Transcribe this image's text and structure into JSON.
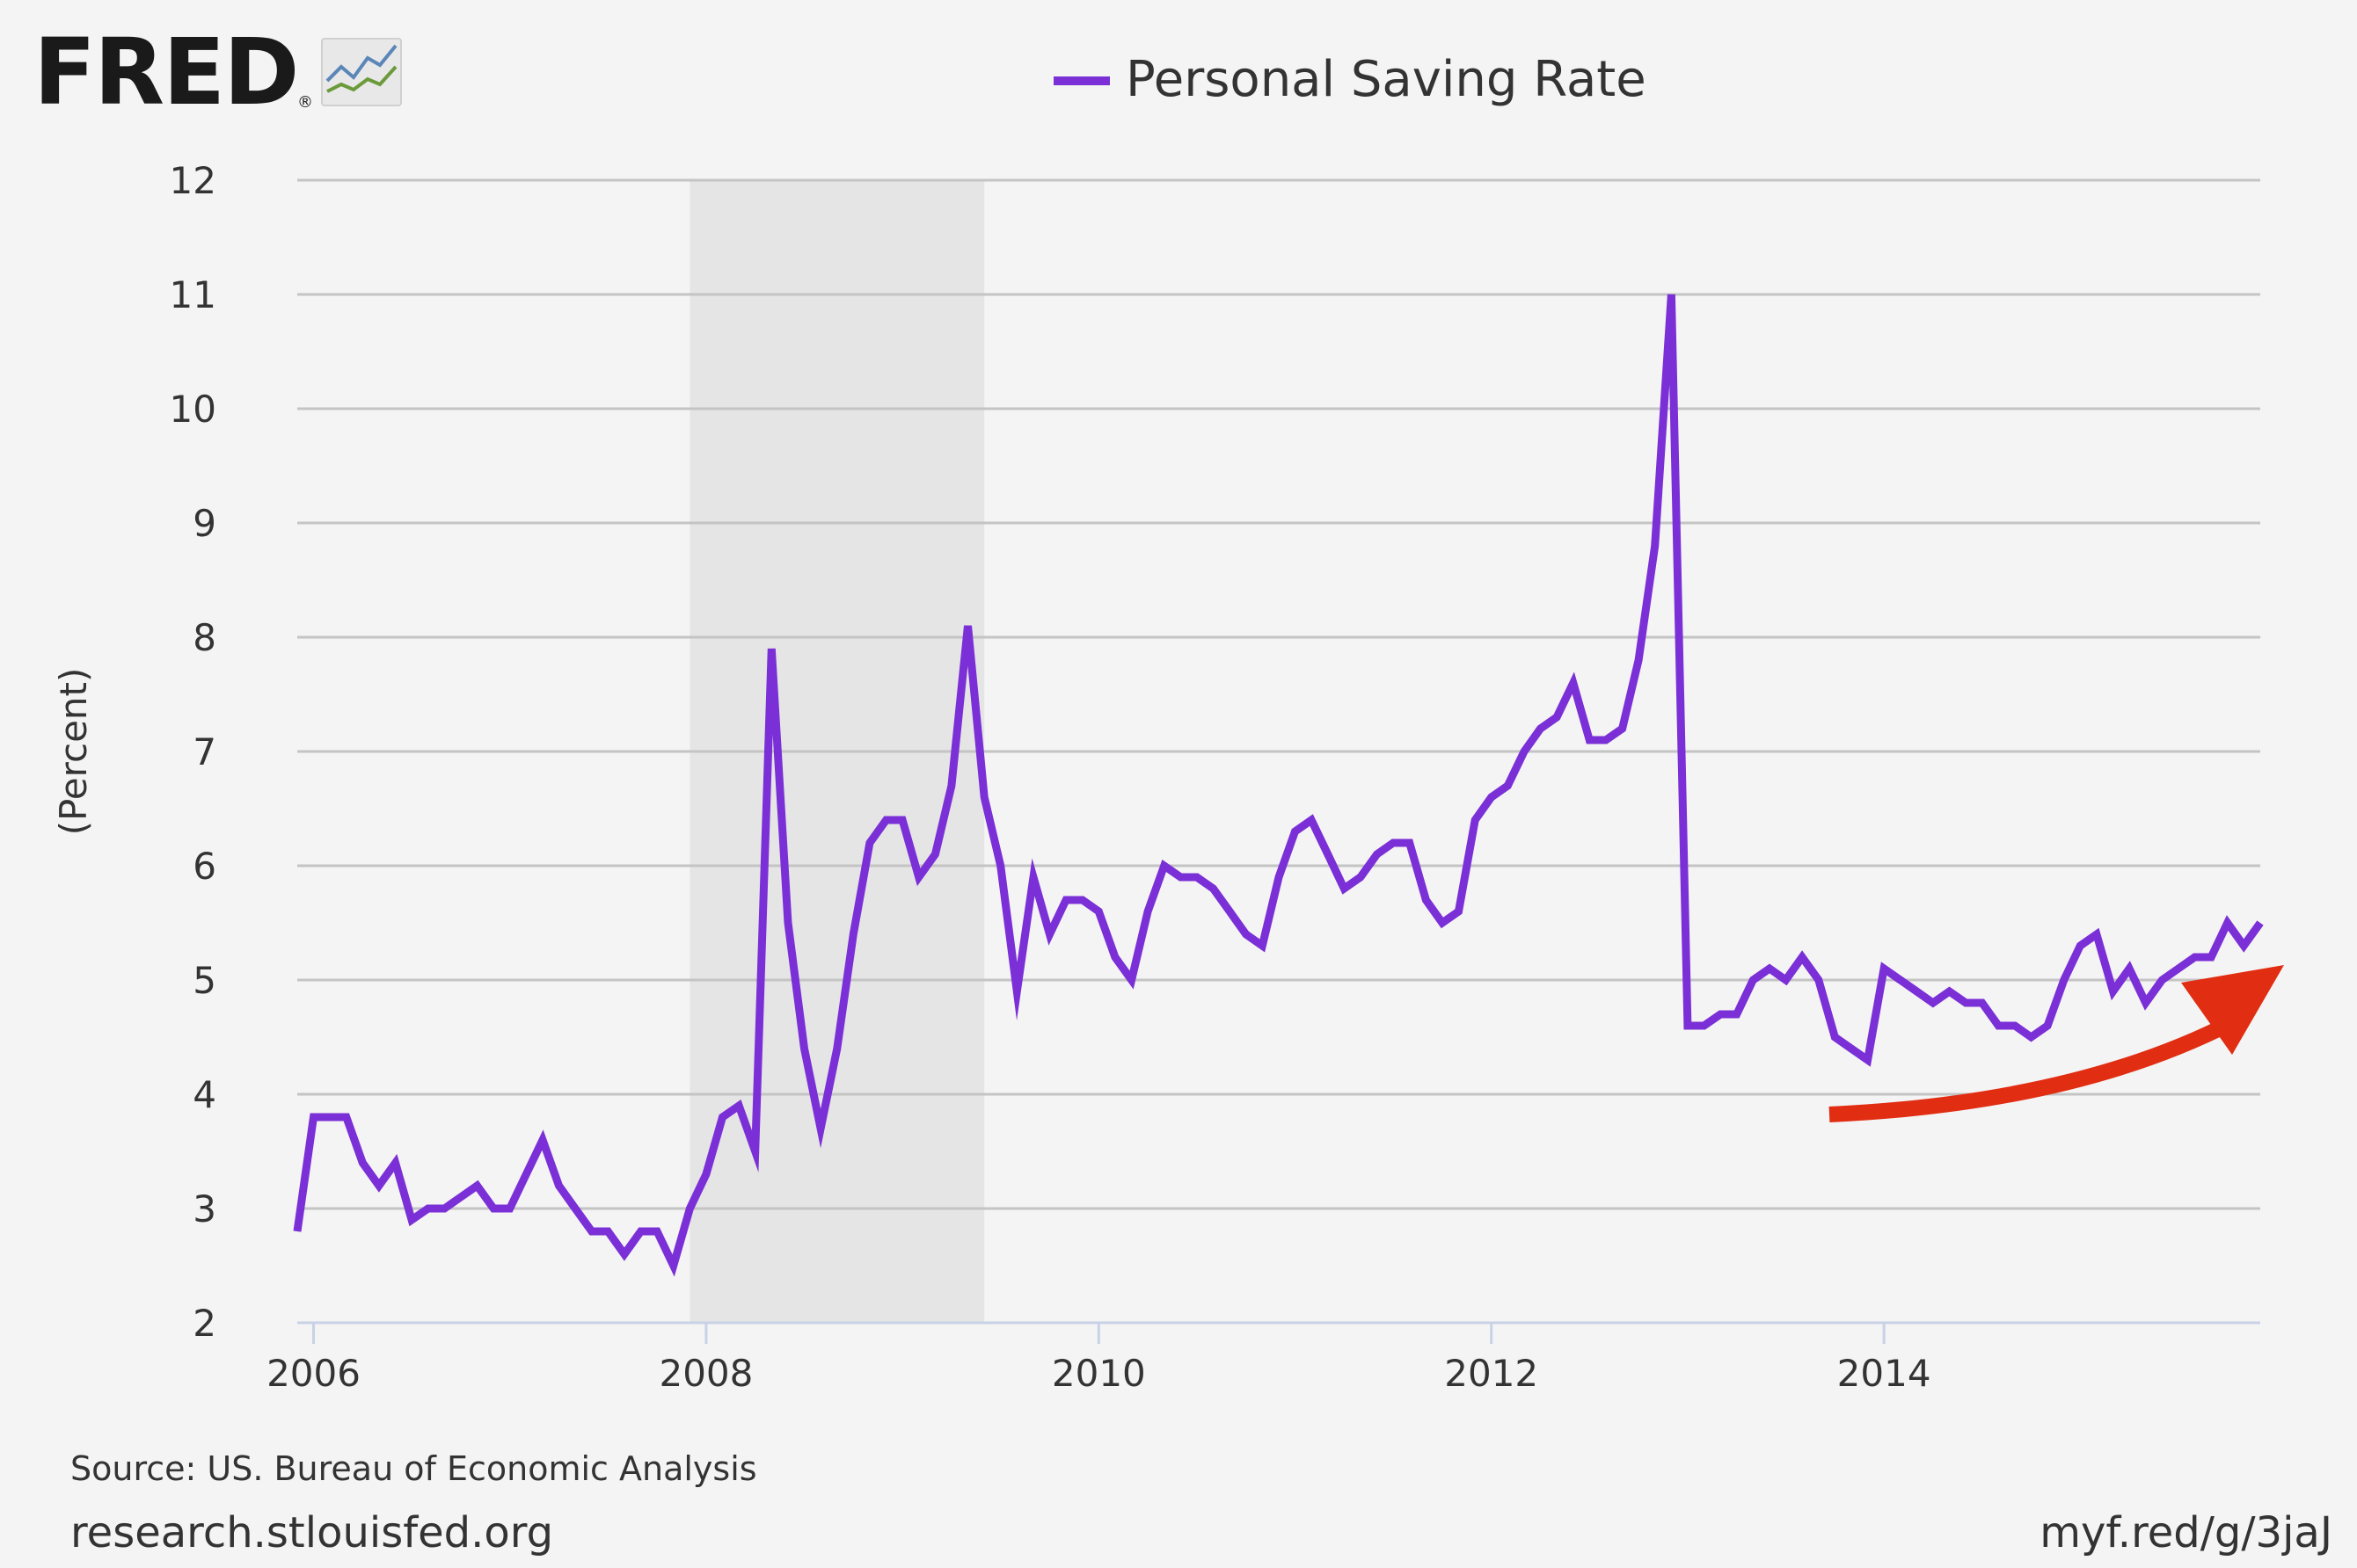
{
  "logo": {
    "text": "FRED",
    "registered": "®"
  },
  "chart_data": {
    "type": "line",
    "title": "",
    "ylabel": "(Percent)",
    "xlabel": "",
    "ylim": [
      2,
      12
    ],
    "y_ticks": [
      2,
      3,
      4,
      5,
      6,
      7,
      8,
      9,
      10,
      11,
      12
    ],
    "x_ticks": [
      2006,
      2008,
      2010,
      2012,
      2014
    ],
    "x_range": [
      2005.917,
      2015.917
    ],
    "grid": true,
    "legend_position": "top-center",
    "recession_shading": [
      {
        "start": 2007.917,
        "end": 2009.417
      }
    ],
    "series": [
      {
        "name": "Personal Saving Rate",
        "color": "#7b2fd6",
        "x": [
          2005.917,
          2006.0,
          2006.083,
          2006.167,
          2006.25,
          2006.333,
          2006.417,
          2006.5,
          2006.583,
          2006.667,
          2006.75,
          2006.833,
          2006.917,
          2007.0,
          2007.083,
          2007.167,
          2007.25,
          2007.333,
          2007.417,
          2007.5,
          2007.583,
          2007.667,
          2007.75,
          2007.833,
          2007.917,
          2008.0,
          2008.083,
          2008.167,
          2008.25,
          2008.333,
          2008.417,
          2008.5,
          2008.583,
          2008.667,
          2008.75,
          2008.833,
          2008.917,
          2009.0,
          2009.083,
          2009.167,
          2009.25,
          2009.333,
          2009.417,
          2009.5,
          2009.583,
          2009.667,
          2009.75,
          2009.833,
          2009.917,
          2010.0,
          2010.083,
          2010.167,
          2010.25,
          2010.333,
          2010.417,
          2010.5,
          2010.583,
          2010.667,
          2010.75,
          2010.833,
          2010.917,
          2011.0,
          2011.083,
          2011.167,
          2011.25,
          2011.333,
          2011.417,
          2011.5,
          2011.583,
          2011.667,
          2011.75,
          2011.833,
          2011.917,
          2012.0,
          2012.083,
          2012.167,
          2012.25,
          2012.333,
          2012.417,
          2012.5,
          2012.583,
          2012.667,
          2012.75,
          2012.833,
          2012.917,
          2013.0,
          2013.083,
          2013.167,
          2013.25,
          2013.333,
          2013.417,
          2013.5,
          2013.583,
          2013.667,
          2013.75,
          2013.833,
          2013.917,
          2014.0,
          2014.083,
          2014.167,
          2014.25,
          2014.333,
          2014.417,
          2014.5,
          2014.583,
          2014.667,
          2014.75,
          2014.833,
          2014.917,
          2015.0,
          2015.083,
          2015.167,
          2015.25,
          2015.333,
          2015.417,
          2015.5,
          2015.583,
          2015.667,
          2015.75,
          2015.833,
          2015.917
        ],
        "values": [
          2.8,
          3.8,
          3.8,
          3.8,
          3.4,
          3.2,
          3.4,
          2.9,
          3.0,
          3.0,
          3.1,
          3.2,
          3.0,
          3.0,
          3.3,
          3.6,
          3.2,
          3.0,
          2.8,
          2.8,
          2.6,
          2.8,
          2.8,
          2.5,
          3.0,
          3.3,
          3.8,
          3.9,
          3.5,
          7.9,
          5.5,
          4.4,
          3.7,
          4.4,
          5.4,
          6.2,
          6.4,
          6.4,
          5.9,
          6.1,
          6.7,
          8.1,
          6.6,
          6.0,
          4.9,
          5.9,
          5.4,
          5.7,
          5.7,
          5.6,
          5.2,
          5.0,
          5.6,
          6.0,
          5.9,
          5.9,
          5.8,
          5.6,
          5.4,
          5.3,
          5.9,
          6.3,
          6.4,
          6.1,
          5.8,
          5.9,
          6.1,
          6.2,
          6.2,
          5.7,
          5.5,
          5.6,
          6.4,
          6.6,
          6.7,
          7.0,
          7.2,
          7.3,
          7.6,
          7.1,
          7.1,
          7.2,
          7.8,
          8.8,
          11.0,
          4.6,
          4.6,
          4.7,
          4.7,
          5.0,
          5.1,
          5.0,
          5.2,
          5.0,
          4.5,
          4.4,
          4.3,
          5.1,
          5.0,
          4.9,
          4.8,
          4.9,
          4.8,
          4.8,
          4.6,
          4.6,
          4.5,
          4.6,
          5.0,
          5.3,
          5.4,
          4.9,
          5.1,
          4.8,
          5.0,
          5.1,
          5.2,
          5.2,
          5.5,
          5.3,
          5.5
        ]
      }
    ]
  },
  "footer": {
    "source": "Source: US. Bureau of Economic Analysis",
    "site": "research.stlouisfed.org",
    "link": "myf.red/g/3jaJ"
  }
}
